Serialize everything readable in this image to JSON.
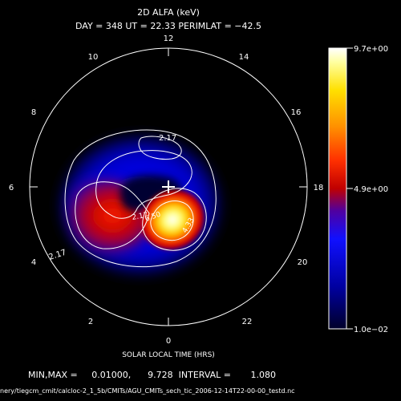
{
  "chart_data": {
    "type": "polar_contour_map",
    "title": "2D ALFA (keV)",
    "subtitle": "DAY = 348   UT = 22.33   PERIMLAT = −42.5",
    "xlabel": "SOLAR LOCAL TIME (HRS)",
    "hour_labels": [
      "12",
      "14",
      "16",
      "18",
      "20",
      "22",
      "0",
      "2",
      "4",
      "6",
      "8",
      "10"
    ],
    "colorbar": {
      "max_label": "9.7e+00",
      "mid_label": "4.9e+00",
      "min_label": "1.0e−02",
      "min": 0.01,
      "max": 9.7,
      "colors": [
        "#00002a",
        "#0000c8",
        "#2020ff",
        "#3a00b0",
        "#7a0060",
        "#c00000",
        "#ff3000",
        "#ff9000",
        "#ffe000",
        "#ffff90",
        "#ffffff"
      ]
    },
    "contour_labels": [
      "2.17",
      "2.17",
      "2.17",
      "4.33",
      "6.50"
    ],
    "stats": {
      "text": "MIN,MAX =     0.01000,      9.728  INTERVAL =       1.080",
      "min": 0.01,
      "max": 9.728,
      "interval": 1.08
    },
    "filepath": "nery/tiegcm_cmit/calcloc-2_1_5b/CMITs/AGU_CMITs_sech_tic_2006-12-14T22-00-00_testd.nc"
  }
}
